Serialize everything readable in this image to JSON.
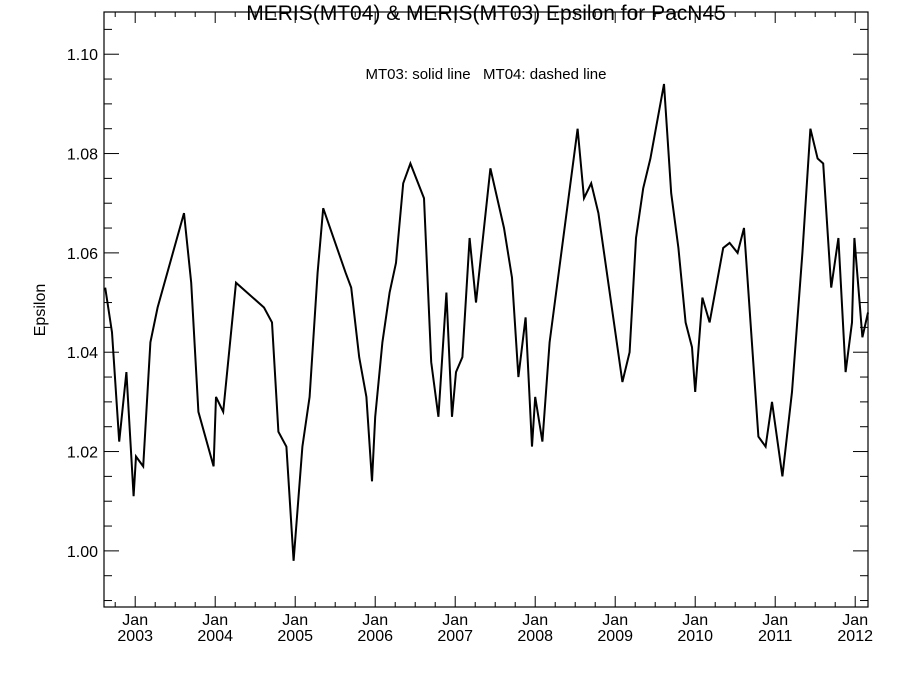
{
  "chart_data": {
    "type": "line",
    "title": "MERIS(MT04) & MERIS(MT03)  Epsilon for PacN45",
    "annotation": "MT03: solid line   MT04: dashed line",
    "xlabel": "",
    "ylabel": "Epsilon",
    "xlim": [
      2002.61,
      2012.16
    ],
    "ylim": [
      0.9887,
      1.1085
    ],
    "grid": false,
    "y_ticks": [
      {
        "value": 1.0,
        "label": "1.00"
      },
      {
        "value": 1.02,
        "label": "1.02"
      },
      {
        "value": 1.04,
        "label": "1.04"
      },
      {
        "value": 1.06,
        "label": "1.06"
      },
      {
        "value": 1.08,
        "label": "1.08"
      },
      {
        "value": 1.1,
        "label": "1.10"
      }
    ],
    "x_ticks": [
      {
        "value": 2003,
        "month": "Jan",
        "year": "2003"
      },
      {
        "value": 2004,
        "month": "Jan",
        "year": "2004"
      },
      {
        "value": 2005,
        "month": "Jan",
        "year": "2005"
      },
      {
        "value": 2006,
        "month": "Jan",
        "year": "2006"
      },
      {
        "value": 2007,
        "month": "Jan",
        "year": "2007"
      },
      {
        "value": 2008,
        "month": "Jan",
        "year": "2008"
      },
      {
        "value": 2009,
        "month": "Jan",
        "year": "2009"
      },
      {
        "value": 2010,
        "month": "Jan",
        "year": "2010"
      },
      {
        "value": 2011,
        "month": "Jan",
        "year": "2011"
      },
      {
        "value": 2012,
        "month": "Jan",
        "year": "2012"
      }
    ],
    "series": [
      {
        "name": "MT03",
        "style": "solid",
        "color": "#000000",
        "x": [
          2002.625,
          2002.71,
          2002.8,
          2002.89,
          2002.98,
          2003.01,
          2003.1,
          2003.19,
          2003.28,
          2003.61,
          2003.7,
          2003.79,
          2003.98,
          2004.01,
          2004.1,
          2004.26,
          2004.61,
          2004.71,
          2004.79,
          2004.89,
          2004.98,
          2005.09,
          2005.18,
          2005.28,
          2005.35,
          2005.63,
          2005.7,
          2005.8,
          2005.89,
          2005.96,
          2006.0,
          2006.09,
          2006.18,
          2006.26,
          2006.35,
          2006.44,
          2006.61,
          2006.7,
          2006.79,
          2006.89,
          2006.96,
          2007.01,
          2007.09,
          2007.18,
          2007.26,
          2007.44,
          2007.61,
          2007.71,
          2007.79,
          2007.88,
          2007.96,
          2008.0,
          2008.09,
          2008.18,
          2008.53,
          2008.61,
          2008.7,
          2008.79,
          2009.09,
          2009.18,
          2009.26,
          2009.35,
          2009.44,
          2009.61,
          2009.7,
          2009.79,
          2009.88,
          2009.96,
          2010.0,
          2010.09,
          2010.18,
          2010.35,
          2010.43,
          2010.53,
          2010.61,
          2010.79,
          2010.88,
          2010.96,
          2011.09,
          2011.21,
          2011.34,
          2011.44,
          2011.53,
          2011.6,
          2011.7,
          2011.79,
          2011.88,
          2011.96,
          2011.99,
          2012.09,
          2012.16
        ],
        "y": [
          1.053,
          1.044,
          1.022,
          1.036,
          1.011,
          1.019,
          1.017,
          1.042,
          1.049,
          1.068,
          1.054,
          1.028,
          1.017,
          1.031,
          1.028,
          1.054,
          1.049,
          1.046,
          1.024,
          1.021,
          0.998,
          1.021,
          1.031,
          1.056,
          1.069,
          1.056,
          1.053,
          1.039,
          1.031,
          1.014,
          1.027,
          1.042,
          1.052,
          1.058,
          1.074,
          1.078,
          1.071,
          1.038,
          1.027,
          1.052,
          1.027,
          1.036,
          1.039,
          1.063,
          1.05,
          1.077,
          1.065,
          1.055,
          1.035,
          1.047,
          1.021,
          1.031,
          1.022,
          1.042,
          1.085,
          1.071,
          1.074,
          1.068,
          1.034,
          1.04,
          1.063,
          1.073,
          1.079,
          1.094,
          1.072,
          1.061,
          1.046,
          1.041,
          1.032,
          1.051,
          1.046,
          1.061,
          1.062,
          1.06,
          1.065,
          1.023,
          1.021,
          1.03,
          1.015,
          1.032,
          1.06,
          1.085,
          1.079,
          1.078,
          1.053,
          1.063,
          1.036,
          1.046,
          1.063,
          1.043,
          1.048
        ]
      }
    ]
  }
}
